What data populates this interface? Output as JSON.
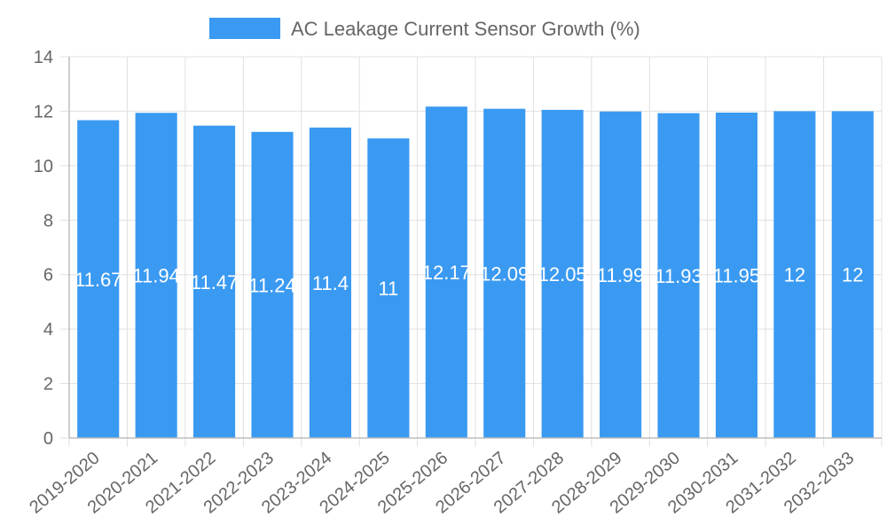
{
  "chart_data": {
    "type": "bar",
    "title": "",
    "xlabel": "",
    "ylabel": "",
    "categories": [
      "2019-2020",
      "2020-2021",
      "2021-2022",
      "2022-2023",
      "2023-2024",
      "2024-2025",
      "2025-2026",
      "2026-2027",
      "2027-2028",
      "2028-2029",
      "2029-2030",
      "2030-2031",
      "2031-2032",
      "2032-2033"
    ],
    "series": [
      {
        "name": "AC Leakage Current Sensor Growth (%)",
        "values": [
          11.67,
          11.94,
          11.47,
          11.24,
          11.4,
          11,
          12.17,
          12.09,
          12.05,
          11.99,
          11.93,
          11.95,
          12,
          12
        ],
        "color": "#3a9af2"
      }
    ],
    "ylim": [
      0,
      14
    ],
    "yticks": [
      0,
      2,
      4,
      6,
      8,
      10,
      12,
      14
    ],
    "grid": true,
    "legend": "top-center",
    "data_labels": [
      "11.67",
      "11.94",
      "11.47",
      "11.24",
      "11.4",
      "11",
      "12.17",
      "12.09",
      "12.05",
      "11.99",
      "11.93",
      "11.95",
      "12",
      "12"
    ]
  }
}
